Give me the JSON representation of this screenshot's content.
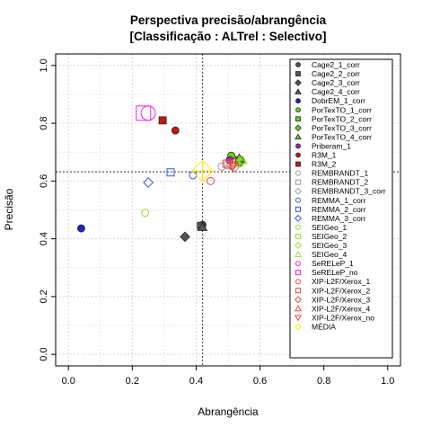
{
  "chart_data": {
    "type": "scatter",
    "title": "Perspectiva precisão/abrangência",
    "subtitle": "[Classificação : ALTrel : Selectivo]",
    "xlabel": "Abrangência",
    "ylabel": "Precisão",
    "xlim": [
      0,
      1
    ],
    "ylim": [
      0,
      1
    ],
    "xticks": [
      "0.0",
      "0.2",
      "0.4",
      "0.6",
      "0.8",
      "1.0"
    ],
    "yticks": [
      "0.0",
      "0.2",
      "0.4",
      "0.6",
      "0.8",
      "1.0"
    ],
    "grid": true,
    "legend_position": "right",
    "reference_lines": {
      "x": 0.42,
      "y": 0.632
    },
    "series": [
      {
        "name": "Cage2_1_corr",
        "shape": "circle",
        "filled": true,
        "color": "#555555",
        "x": 0.42,
        "y": 0.448
      },
      {
        "name": "Cage2_2_corr",
        "shape": "square",
        "filled": true,
        "color": "#555555",
        "x": 0.415,
        "y": 0.445
      },
      {
        "name": "Cage2_3_corr",
        "shape": "diamond",
        "filled": true,
        "color": "#555555",
        "x": 0.365,
        "y": 0.407
      },
      {
        "name": "Cage2_4_corr",
        "shape": "triangle",
        "filled": true,
        "color": "#555555",
        "x": 0.42,
        "y": 0.44
      },
      {
        "name": "DobrEM_1_corr",
        "shape": "circle",
        "filled": true,
        "color": "#1e1ed2",
        "x": 0.04,
        "y": 0.436
      },
      {
        "name": "PorTexTO_1_corr",
        "shape": "circle",
        "filled": true,
        "color": "#5fd414",
        "x": 0.51,
        "y": 0.688
      },
      {
        "name": "PorTexTO_2_corr",
        "shape": "square",
        "filled": true,
        "color": "#5fd414",
        "x": 0.535,
        "y": 0.672
      },
      {
        "name": "PorTexTO_3_corr",
        "shape": "diamond",
        "filled": true,
        "color": "#5fd414",
        "x": 0.54,
        "y": 0.668
      },
      {
        "name": "PorTexTO_4_corr",
        "shape": "triangle",
        "filled": true,
        "color": "#5fd414",
        "x": 0.535,
        "y": 0.678
      },
      {
        "name": "Priberam_1",
        "shape": "circle",
        "filled": true,
        "color": "#b319b3",
        "x": 0.505,
        "y": 0.672
      },
      {
        "name": "R3M_1",
        "shape": "circle",
        "filled": true,
        "color": "#c81414",
        "x": 0.335,
        "y": 0.775
      },
      {
        "name": "R3M_2",
        "shape": "square",
        "filled": true,
        "color": "#c81414",
        "x": 0.295,
        "y": 0.81
      },
      {
        "name": "REMBRANDT_1",
        "shape": "circle",
        "filled": false,
        "color": "#999999",
        "x": 0.48,
        "y": 0.65
      },
      {
        "name": "REMBRANDT_2",
        "shape": "square",
        "filled": false,
        "color": "#999999",
        "x": 0.5,
        "y": 0.655
      },
      {
        "name": "REMBRANDT_3_corr",
        "shape": "diamond",
        "filled": false,
        "color": "#999999",
        "x": 0.52,
        "y": 0.648
      },
      {
        "name": "REMMA_1_corr",
        "shape": "circle",
        "filled": false,
        "color": "#3355ee",
        "x": 0.39,
        "y": 0.62
      },
      {
        "name": "REMMA_2_corr",
        "shape": "square",
        "filled": false,
        "color": "#3355ee",
        "x": 0.32,
        "y": 0.63
      },
      {
        "name": "REMMA_3_corr",
        "shape": "diamond",
        "filled": false,
        "color": "#3355ee",
        "x": 0.25,
        "y": 0.595
      },
      {
        "name": "SEIGeo_1",
        "shape": "circle",
        "filled": false,
        "color": "#99dd33",
        "x": 0.24,
        "y": 0.49
      },
      {
        "name": "SEIGeo_2",
        "shape": "square",
        "filled": false,
        "color": "#99dd33",
        "x": 0.525,
        "y": 0.66
      },
      {
        "name": "SEIGeo_3",
        "shape": "diamond",
        "filled": false,
        "color": "#99dd33",
        "x": 0.54,
        "y": 0.665
      },
      {
        "name": "SEIGeo_4",
        "shape": "triangle",
        "filled": false,
        "color": "#99dd33",
        "x": 0.545,
        "y": 0.672
      },
      {
        "name": "SeRELeP_1",
        "shape": "circle-large",
        "filled": false,
        "color": "#ee22ee",
        "x": 0.25,
        "y": 0.835
      },
      {
        "name": "SeRELeP_no",
        "shape": "square-large",
        "filled": false,
        "color": "#ee22ee",
        "x": 0.235,
        "y": 0.835
      },
      {
        "name": "XIP-L2F/Xerox_1",
        "shape": "circle",
        "filled": false,
        "color": "#ee4444",
        "x": 0.445,
        "y": 0.6
      },
      {
        "name": "XIP-L2F/Xerox_2",
        "shape": "square",
        "filled": false,
        "color": "#ee4444",
        "x": 0.495,
        "y": 0.66
      },
      {
        "name": "XIP-L2F/Xerox_3",
        "shape": "diamond",
        "filled": false,
        "color": "#ee4444",
        "x": 0.51,
        "y": 0.655
      },
      {
        "name": "XIP-L2F/Xerox_4",
        "shape": "triangle",
        "filled": false,
        "color": "#ee4444",
        "x": 0.52,
        "y": 0.665
      },
      {
        "name": "XIP-L2F/Xerox_no",
        "shape": "triangle-down",
        "filled": false,
        "color": "#ee4444",
        "x": 0.515,
        "y": 0.65
      },
      {
        "name": "MÉDIA",
        "shape": "diamond-large",
        "filled": false,
        "color": "#ffee00",
        "x": 0.42,
        "y": 0.635
      }
    ]
  }
}
